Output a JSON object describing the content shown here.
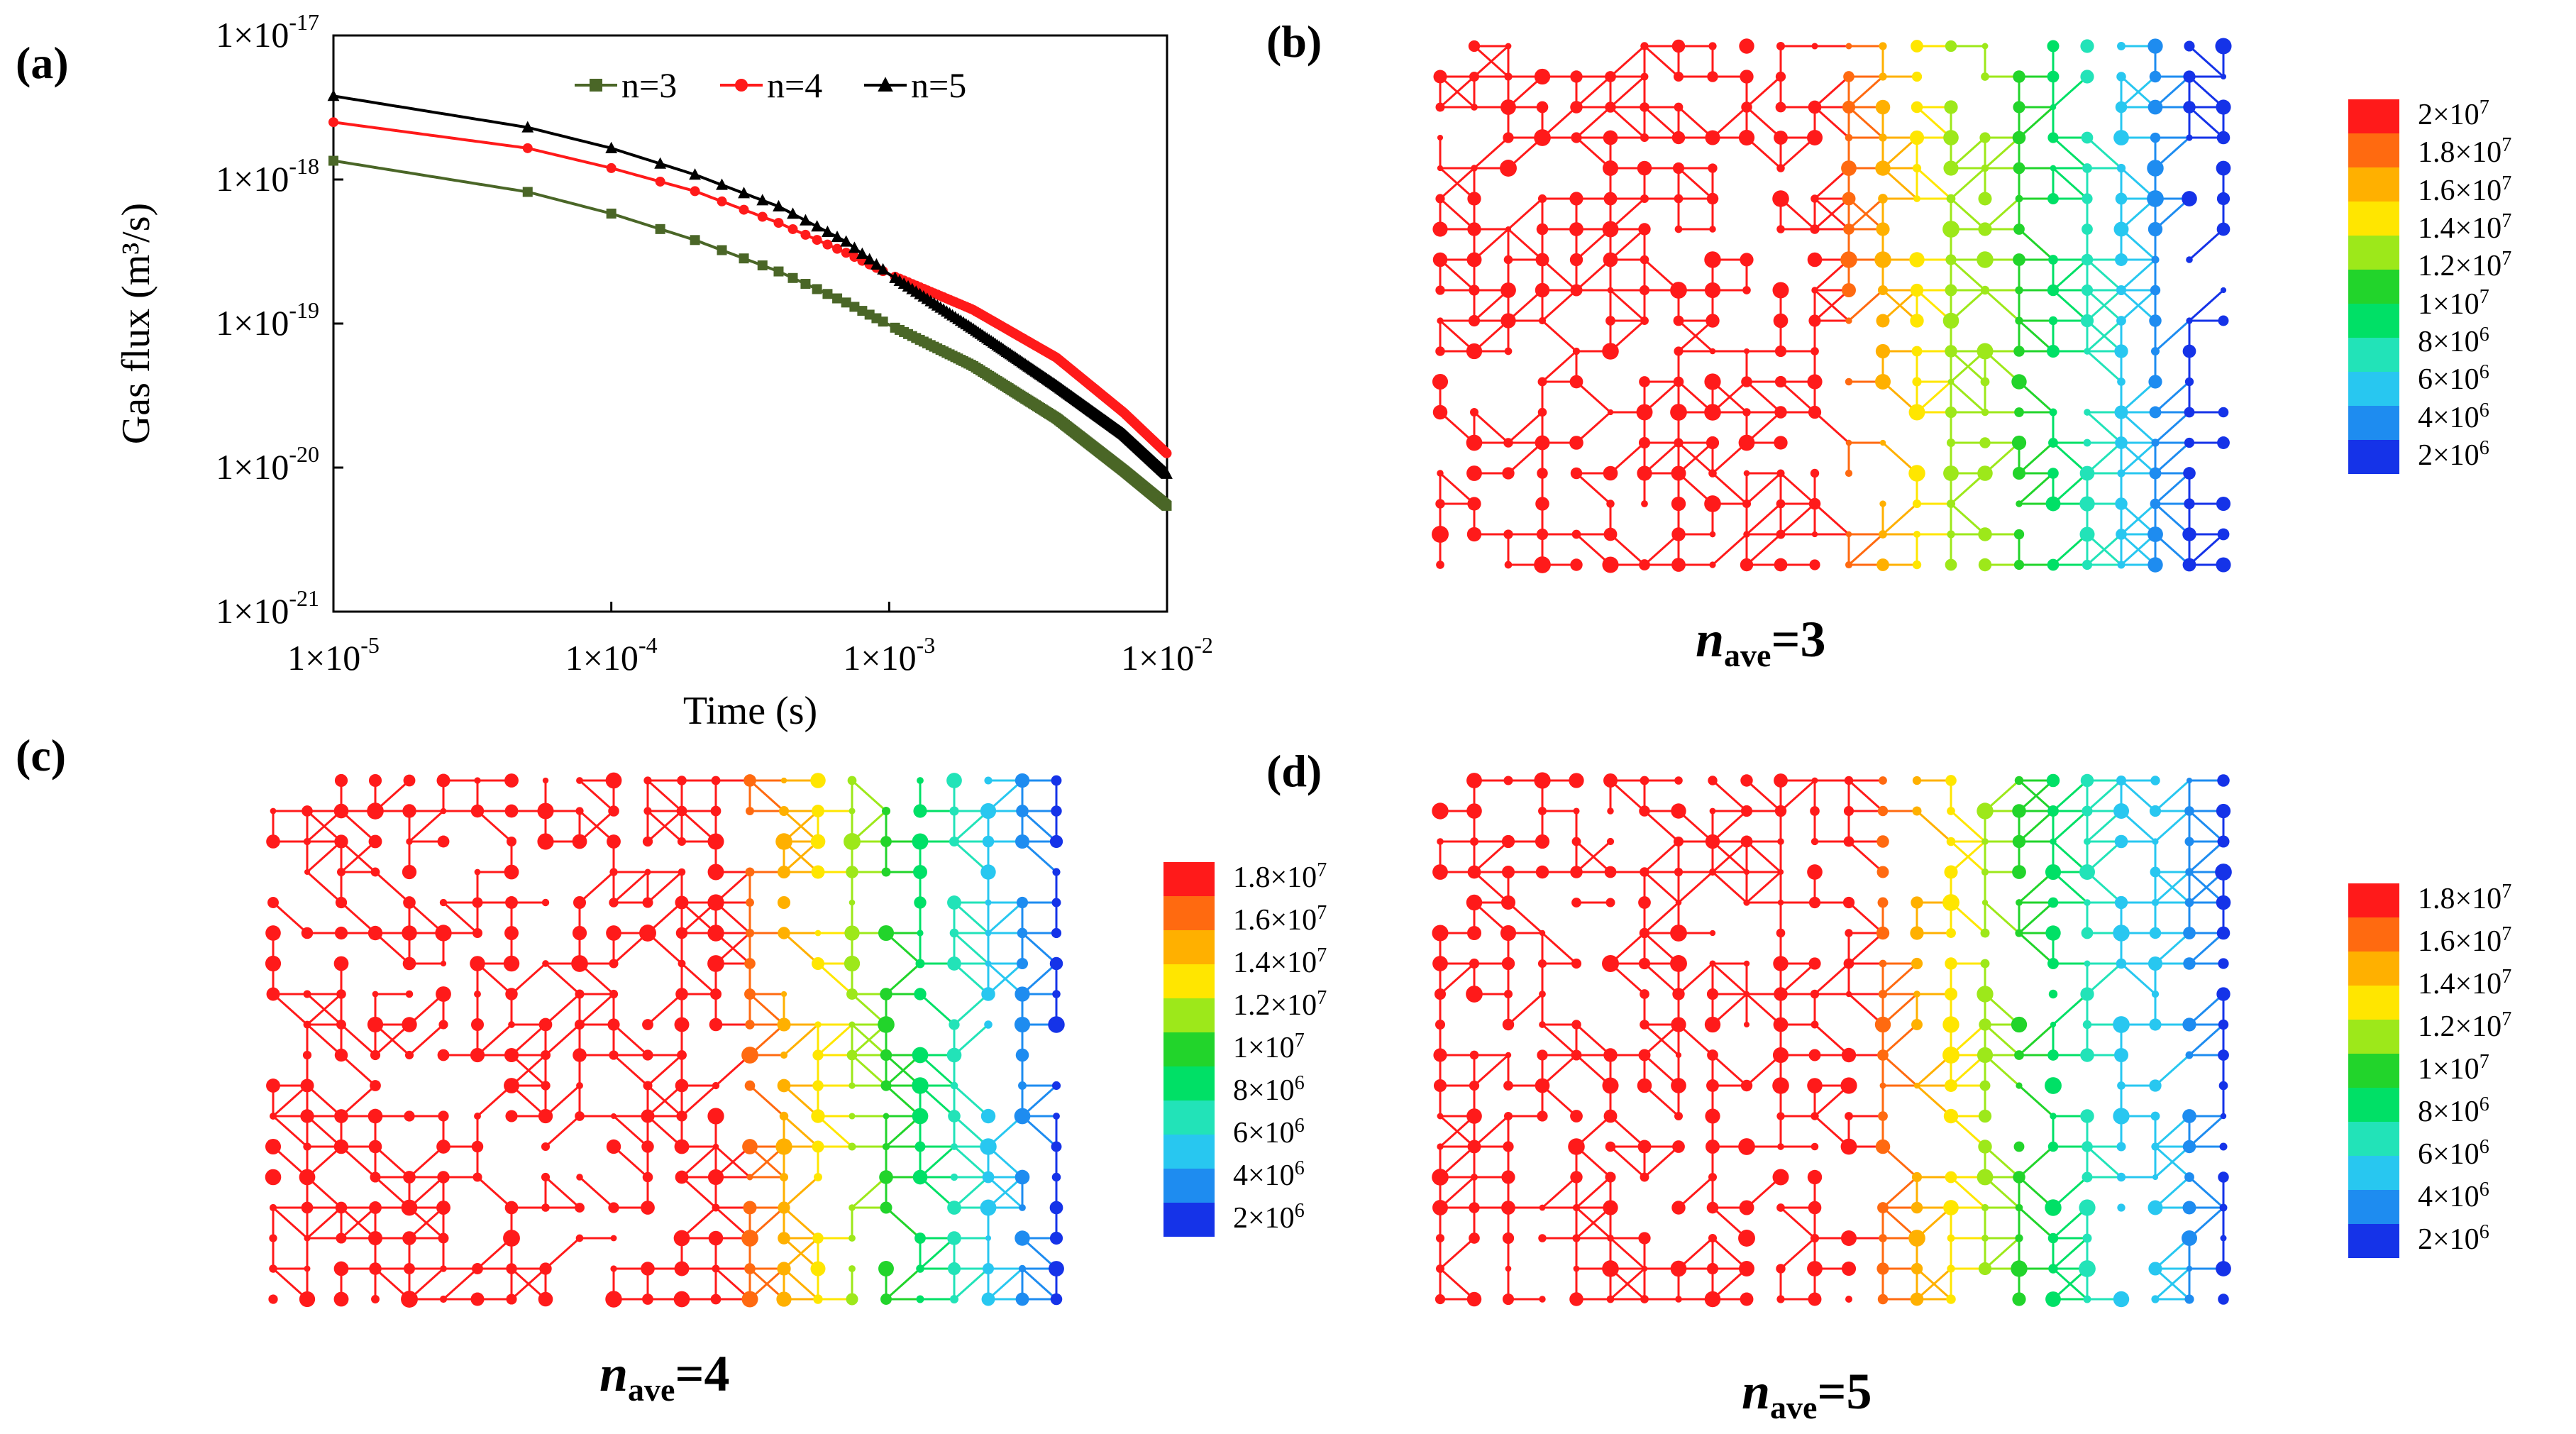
{
  "panels": {
    "a": {
      "label": "(a)"
    },
    "b": {
      "label": "(b)",
      "caption": {
        "n": "n",
        "sub": "ave",
        "rest": "=3"
      }
    },
    "c": {
      "label": "(c)",
      "caption": {
        "n": "n",
        "sub": "ave",
        "rest": "=4"
      }
    },
    "d": {
      "label": "(d)",
      "caption": {
        "n": "n",
        "sub": "ave",
        "rest": "=5"
      }
    }
  },
  "chart_data": {
    "type": "line",
    "xlabel": "Time (s)",
    "ylabel": "Gas flux (m³/s)",
    "xscale": "log",
    "yscale": "log",
    "xlim": [
      1e-05,
      0.01
    ],
    "ylim": [
      1e-21,
      1e-17
    ],
    "x_ticks": [
      {
        "value": 1e-05,
        "label": "1×10",
        "exp": "-5"
      },
      {
        "value": 0.0001,
        "label": "1×10",
        "exp": "-4"
      },
      {
        "value": 0.001,
        "label": "1×10",
        "exp": "-3"
      },
      {
        "value": 0.01,
        "label": "1×10",
        "exp": "-2"
      }
    ],
    "y_ticks": [
      {
        "value": 1e-17,
        "label": "1×10",
        "exp": "-17"
      },
      {
        "value": 1e-18,
        "label": "1×10",
        "exp": "-18"
      },
      {
        "value": 1e-19,
        "label": "1×10",
        "exp": "-19"
      },
      {
        "value": 1e-20,
        "label": "1×10",
        "exp": "-20"
      },
      {
        "value": 1e-21,
        "label": "1×10",
        "exp": "-21"
      }
    ],
    "legend_position": "top",
    "series": [
      {
        "name": "n=3",
        "color": "#4a6627",
        "marker": "square",
        "x": [
          1e-05,
          5e-05,
          0.0001,
          0.0002,
          0.0004,
          0.0007,
          0.001,
          0.002,
          0.004,
          0.007,
          0.01
        ],
        "y": [
          1.35e-18,
          8.2e-19,
          5.8e-19,
          3.8e-19,
          2.3e-19,
          1.4e-19,
          9.8e-20,
          5.1e-20,
          2.2e-20,
          9.5e-21,
          5.4e-21
        ]
      },
      {
        "name": "n=4",
        "color": "#ff1a1a",
        "marker": "circle",
        "x": [
          1e-05,
          5e-05,
          0.0001,
          0.0002,
          0.0004,
          0.0007,
          0.001,
          0.002,
          0.004,
          0.007,
          0.01
        ],
        "y": [
          2.5e-18,
          1.65e-18,
          1.2e-18,
          8.3e-19,
          5e-19,
          3.1e-19,
          2.2e-19,
          1.25e-19,
          5.8e-20,
          2.4e-20,
          1.25e-20
        ]
      },
      {
        "name": "n=5",
        "color": "#000000",
        "marker": "triangle",
        "x": [
          1e-05,
          5e-05,
          0.0001,
          0.0002,
          0.0004,
          0.0007,
          0.001,
          0.002,
          0.004,
          0.007,
          0.01
        ],
        "y": [
          3.8e-18,
          2.3e-18,
          1.65e-18,
          1.08e-18,
          6.5e-19,
          3.7e-19,
          2.2e-19,
          9.2e-20,
          3.7e-20,
          1.7e-20,
          9e-21
        ]
      }
    ]
  },
  "colorbars": {
    "b": {
      "colors": [
        "#ff1a1a",
        "#ff6a10",
        "#ffb000",
        "#ffe600",
        "#9de81a",
        "#22d42b",
        "#00e066",
        "#22e3b8",
        "#28c7f0",
        "#1e8cf0",
        "#1533e8"
      ],
      "labels": [
        {
          "m": "2×10",
          "e": "7"
        },
        {
          "m": "1.8×10",
          "e": "7"
        },
        {
          "m": "1.6×10",
          "e": "7"
        },
        {
          "m": "1.4×10",
          "e": "7"
        },
        {
          "m": "1.2×10",
          "e": "7"
        },
        {
          "m": "1×10",
          "e": "7"
        },
        {
          "m": "8×10",
          "e": "6"
        },
        {
          "m": "6×10",
          "e": "6"
        },
        {
          "m": "4×10",
          "e": "6"
        },
        {
          "m": "2×10",
          "e": "6"
        }
      ]
    },
    "c": {
      "colors": [
        "#ff1a1a",
        "#ff6a10",
        "#ffb000",
        "#ffe600",
        "#9de81a",
        "#22d42b",
        "#00e066",
        "#22e3b8",
        "#28c7f0",
        "#1e8cf0",
        "#1533e8"
      ],
      "labels": [
        {
          "m": "1.8×10",
          "e": "7"
        },
        {
          "m": "1.6×10",
          "e": "7"
        },
        {
          "m": "1.4×10",
          "e": "7"
        },
        {
          "m": "1.2×10",
          "e": "7"
        },
        {
          "m": "1×10",
          "e": "7"
        },
        {
          "m": "8×10",
          "e": "6"
        },
        {
          "m": "6×10",
          "e": "6"
        },
        {
          "m": "4×10",
          "e": "6"
        },
        {
          "m": "2×10",
          "e": "6"
        }
      ]
    },
    "d": {
      "colors": [
        "#ff1a1a",
        "#ff6a10",
        "#ffb000",
        "#ffe600",
        "#9de81a",
        "#22d42b",
        "#00e066",
        "#22e3b8",
        "#28c7f0",
        "#1e8cf0",
        "#1533e8"
      ],
      "labels": [
        {
          "m": "1.8×10",
          "e": "7"
        },
        {
          "m": "1.6×10",
          "e": "7"
        },
        {
          "m": "1.4×10",
          "e": "7"
        },
        {
          "m": "1.2×10",
          "e": "7"
        },
        {
          "m": "1×10",
          "e": "7"
        },
        {
          "m": "8×10",
          "e": "6"
        },
        {
          "m": "6×10",
          "e": "6"
        },
        {
          "m": "4×10",
          "e": "6"
        },
        {
          "m": "2×10",
          "e": "6"
        }
      ]
    }
  }
}
